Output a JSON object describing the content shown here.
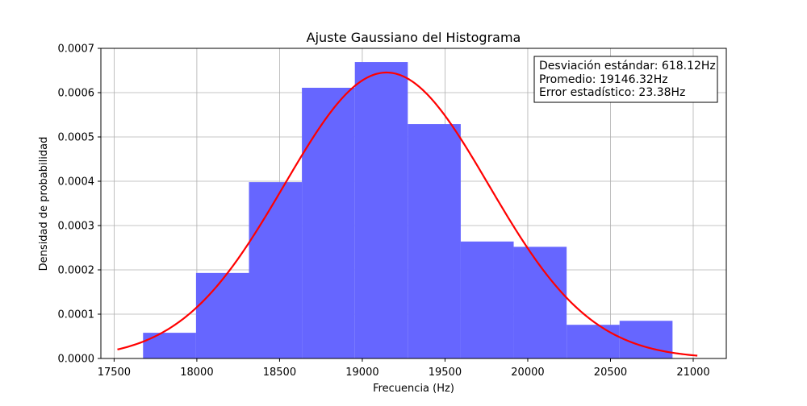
{
  "chart_data": {
    "type": "bar",
    "title": "Ajuste Gaussiano del Histograma",
    "xlabel": "Frecuencia (Hz)",
    "ylabel": "Densidad de probabilidad",
    "xlim": [
      17420,
      21200
    ],
    "ylim": [
      0,
      0.0007
    ],
    "x_ticks": [
      17500,
      18000,
      18500,
      19000,
      19500,
      20000,
      20500,
      21000
    ],
    "y_ticks": [
      0.0,
      0.0001,
      0.0002,
      0.0003,
      0.0004,
      0.0005,
      0.0006,
      0.0007
    ],
    "y_tick_labels": [
      "0.0000",
      "0.0001",
      "0.0002",
      "0.0003",
      "0.0004",
      "0.0005",
      "0.0006",
      "0.0007"
    ],
    "grid": true,
    "histogram": {
      "bin_edges": [
        17675,
        17995,
        18315,
        18635,
        18955,
        19275,
        19595,
        19915,
        20235,
        20555,
        20875
      ],
      "values": [
        5.8e-05,
        0.000193,
        0.000398,
        0.000611,
        0.000669,
        0.000529,
        0.000264,
        0.000252,
        7.6e-05,
        8.5e-05
      ],
      "color": "#6666ff"
    },
    "fit_curve": {
      "type": "gaussian",
      "mean": 19146.32,
      "std": 618.12,
      "x_range": [
        17520,
        21025
      ],
      "color": "#ff0000"
    },
    "annotation": {
      "lines": [
        "Desviación estándar: 618.12Hz",
        "Promedio: 19146.32Hz",
        "Error estadístico: 23.38Hz"
      ],
      "placement": "top-right"
    }
  }
}
